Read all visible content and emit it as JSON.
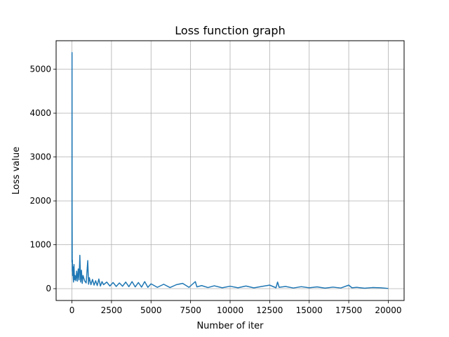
{
  "chart_data": {
    "type": "line",
    "title": "Loss function graph",
    "xlabel": "Number of iter",
    "ylabel": "Loss value",
    "xlim": [
      -1000,
      21000
    ],
    "ylim": [
      -270,
      5650
    ],
    "grid": true,
    "x_ticks": [
      0,
      2500,
      5000,
      7500,
      10000,
      12500,
      15000,
      17500,
      20000
    ],
    "y_ticks": [
      0,
      1000,
      2000,
      3000,
      4000,
      5000
    ],
    "series": [
      {
        "color": "#1f77b4",
        "x": [
          0,
          5,
          10,
          20,
          30,
          40,
          60,
          80,
          100,
          130,
          160,
          200,
          250,
          300,
          350,
          400,
          450,
          500,
          550,
          600,
          650,
          700,
          800,
          900,
          1000,
          1050,
          1100,
          1200,
          1300,
          1400,
          1500,
          1600,
          1700,
          1800,
          1900,
          2000,
          2200,
          2400,
          2600,
          2800,
          3000,
          3200,
          3400,
          3600,
          3800,
          4000,
          4200,
          4400,
          4600,
          4800,
          5000,
          5400,
          5800,
          6200,
          6600,
          7000,
          7400,
          7800,
          7900,
          8200,
          8600,
          9000,
          9500,
          10000,
          10500,
          11000,
          11500,
          12000,
          12500,
          12900,
          13000,
          13100,
          13500,
          14000,
          14500,
          15000,
          15500,
          16000,
          16500,
          17000,
          17500,
          17700,
          18000,
          18500,
          19000,
          19500,
          20000
        ],
        "values": [
          600,
          5380,
          1800,
          400,
          650,
          300,
          500,
          260,
          150,
          550,
          200,
          300,
          180,
          400,
          170,
          450,
          200,
          760,
          150,
          420,
          120,
          300,
          180,
          130,
          640,
          100,
          250,
          90,
          210,
          80,
          180,
          70,
          220,
          60,
          160,
          90,
          150,
          60,
          140,
          50,
          130,
          55,
          150,
          45,
          160,
          40,
          140,
          35,
          160,
          30,
          110,
          30,
          100,
          25,
          90,
          120,
          30,
          160,
          40,
          70,
          25,
          65,
          20,
          55,
          20,
          60,
          18,
          50,
          80,
          20,
          150,
          30,
          50,
          15,
          45,
          20,
          40,
          12,
          35,
          15,
          80,
          20,
          30,
          10,
          25,
          20,
          5
        ]
      }
    ]
  }
}
